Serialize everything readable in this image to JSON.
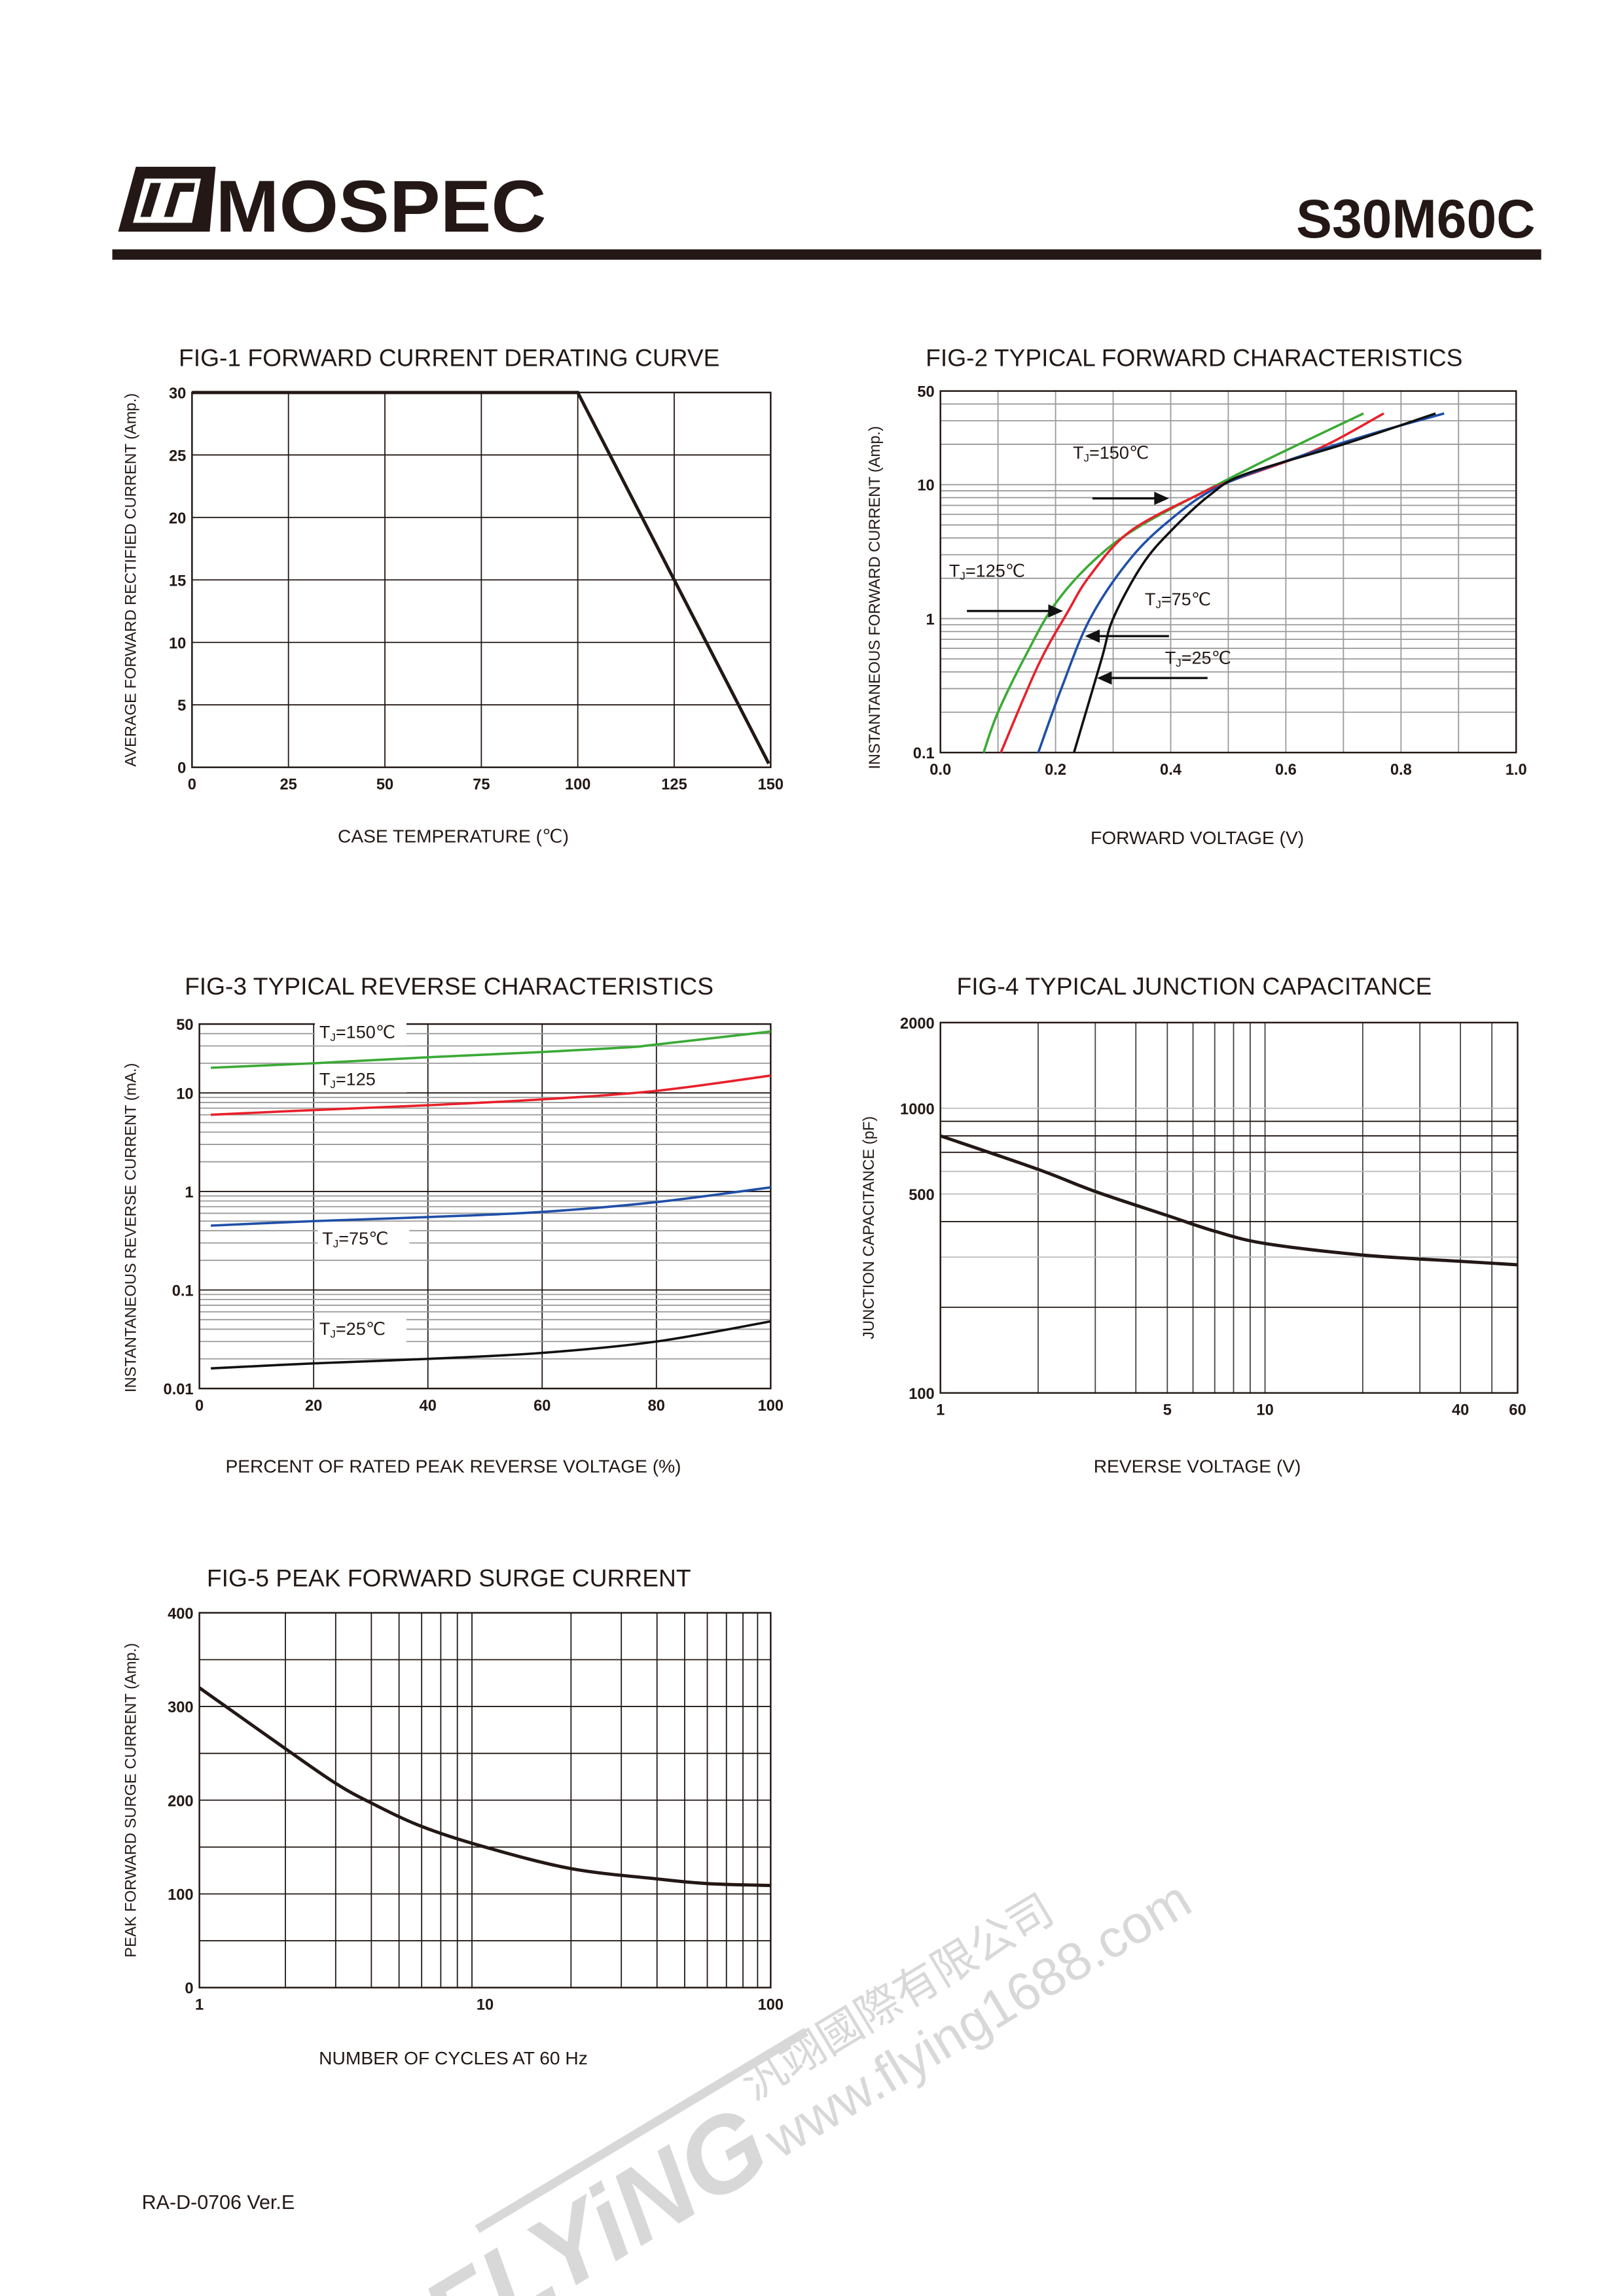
{
  "header": {
    "brand": "MOSPEC",
    "part_number": "S30M60C"
  },
  "footer": {
    "doc_code": "RA-D-0706 Ver.E"
  },
  "watermark": {
    "logo_text": "FLYiNG",
    "company_cn": "汎翊國際有限公司",
    "url": "www.flying1688.com"
  },
  "colors": {
    "ink": "#231815",
    "green": "#3aaa35",
    "red": "#e8202a",
    "blue": "#1f4fa8",
    "black": "#111111",
    "grid_gray": "#9a9a9a"
  },
  "chart_data": [
    {
      "id": "fig1",
      "type": "line",
      "title": "FIG-1 FORWARD CURRENT DERATING CURVE",
      "xlabel": "CASE TEMPERATURE (℃)",
      "ylabel": "AVERAGE FORWARD RECTIFIED CURRENT (Amp.)",
      "xscale": "linear",
      "yscale": "linear",
      "xlim": [
        0,
        150
      ],
      "ylim": [
        0,
        30
      ],
      "grid": true,
      "xticks": [
        {
          "v": 0,
          "label": "0"
        },
        {
          "v": 25,
          "label": "25"
        },
        {
          "v": 50,
          "label": "50"
        },
        {
          "v": 75,
          "label": "75"
        },
        {
          "v": 100,
          "label": "100"
        },
        {
          "v": 125,
          "label": "125"
        },
        {
          "v": 150,
          "label": "150"
        }
      ],
      "yticks": [
        {
          "v": 0,
          "label": "0"
        },
        {
          "v": 5,
          "label": "5"
        },
        {
          "v": 10,
          "label": "10"
        },
        {
          "v": 15,
          "label": "15"
        },
        {
          "v": 20,
          "label": "20"
        },
        {
          "v": 25,
          "label": "25"
        },
        {
          "v": 30,
          "label": "30"
        }
      ],
      "series": [
        {
          "name": "derating",
          "color": "#231815",
          "points": [
            [
              0,
              30
            ],
            [
              100,
              30
            ],
            [
              149.5,
              0.3
            ]
          ]
        }
      ],
      "annotations": []
    },
    {
      "id": "fig2",
      "type": "line",
      "title": "FIG-2 TYPICAL FORWARD CHARACTERISTICS",
      "xlabel": "FORWARD VOLTAGE (V)",
      "ylabel": "INSTANTANEOUS FORWARD CURRENT (Amp.)",
      "xscale": "linear",
      "yscale": "log",
      "xlim": [
        0,
        1.0
      ],
      "ylim": [
        0.1,
        50
      ],
      "grid": true,
      "xticks": [
        {
          "v": 0,
          "label": "0.0"
        },
        {
          "v": 0.2,
          "label": "0.2"
        },
        {
          "v": 0.4,
          "label": "0.4"
        },
        {
          "v": 0.6,
          "label": "0.6"
        },
        {
          "v": 0.8,
          "label": "0.8"
        },
        {
          "v": 1.0,
          "label": "1.0"
        }
      ],
      "yticks": [
        {
          "v": 0.1,
          "label": "0.1"
        },
        {
          "v": 1,
          "label": "1"
        },
        {
          "v": 10,
          "label": "10"
        },
        {
          "v": 50,
          "label": "50"
        }
      ],
      "series": [
        {
          "name": "TJ=150℃",
          "color": "#3aaa35",
          "points": [
            [
              0.075,
              0.1
            ],
            [
              0.1,
              0.2
            ],
            [
              0.15,
              0.55
            ],
            [
              0.2,
              1.3
            ],
            [
              0.27,
              2.8
            ],
            [
              0.35,
              5
            ],
            [
              0.5,
              11
            ],
            [
              0.6,
              18
            ],
            [
              0.735,
              34
            ]
          ]
        },
        {
          "name": "TJ=125℃",
          "color": "#e8202a",
          "points": [
            [
              0.105,
              0.1
            ],
            [
              0.17,
              0.45
            ],
            [
              0.22,
              1.1
            ],
            [
              0.26,
              2.1
            ],
            [
              0.33,
              4.5
            ],
            [
              0.45,
              8.5
            ],
            [
              0.5,
              10.5
            ],
            [
              0.65,
              18
            ],
            [
              0.77,
              34
            ]
          ]
        },
        {
          "name": "TJ=75℃",
          "color": "#1f4fa8",
          "points": [
            [
              0.17,
              0.1
            ],
            [
              0.21,
              0.3
            ],
            [
              0.26,
              1
            ],
            [
              0.33,
              2.8
            ],
            [
              0.4,
              5.5
            ],
            [
              0.48,
              9.5
            ],
            [
              0.6,
              15
            ],
            [
              0.75,
              24
            ],
            [
              0.875,
              34
            ]
          ]
        },
        {
          "name": "TJ=25℃",
          "color": "#111111",
          "points": [
            [
              0.232,
              0.1
            ],
            [
              0.28,
              0.5
            ],
            [
              0.3,
              1
            ],
            [
              0.35,
              2.5
            ],
            [
              0.4,
              4.5
            ],
            [
              0.47,
              8.5
            ],
            [
              0.53,
              12
            ],
            [
              0.7,
              20
            ],
            [
              0.86,
              34
            ]
          ]
        }
      ],
      "annotations": [
        {
          "prefix": "T",
          "sub": "J",
          "rest": "=150℃",
          "at": [
            0.23,
            15.6
          ],
          "arrow": [
            [
              0.264,
              7.9
            ],
            [
              0.397,
              7.9
            ]
          ]
        },
        {
          "prefix": "T",
          "sub": "J",
          "rest": "=125℃",
          "at": [
            0.015,
            2.05
          ],
          "arrow": [
            [
              0.046,
              1.14
            ],
            [
              0.213,
              1.14
            ]
          ]
        },
        {
          "prefix": "T",
          "sub": "J",
          "rest": "=75℃",
          "at": [
            0.355,
            1.26
          ],
          "arrow": [
            [
              0.397,
              0.74
            ],
            [
              0.251,
              0.74
            ]
          ]
        },
        {
          "prefix": "T",
          "sub": "J",
          "rest": "=25℃",
          "at": [
            0.39,
            0.46
          ],
          "arrow": [
            [
              0.464,
              0.36
            ],
            [
              0.272,
              0.36
            ]
          ]
        }
      ]
    },
    {
      "id": "fig3",
      "type": "line",
      "title": "FIG-3 TYPICAL REVERSE CHARACTERISTICS",
      "xlabel": "PERCENT OF RATED PEAK REVERSE VOLTAGE (%)",
      "ylabel": "INSTANTANEOUS REVERSE CURRENT (mA.)",
      "xscale": "linear",
      "yscale": "log",
      "xlim": [
        0,
        100
      ],
      "ylim": [
        0.01,
        50
      ],
      "grid": true,
      "xticks": [
        {
          "v": 0,
          "label": "0"
        },
        {
          "v": 20,
          "label": "20"
        },
        {
          "v": 40,
          "label": "40"
        },
        {
          "v": 60,
          "label": "60"
        },
        {
          "v": 80,
          "label": "80"
        },
        {
          "v": 100,
          "label": "100"
        }
      ],
      "yticks": [
        {
          "v": 0.01,
          "label": "0.01"
        },
        {
          "v": 0.1,
          "label": "0.1"
        },
        {
          "v": 1,
          "label": "1"
        },
        {
          "v": 10,
          "label": "10"
        },
        {
          "v": 50,
          "label": "50"
        }
      ],
      "series": [
        {
          "name": "TJ=150℃",
          "color": "#3aaa35",
          "points": [
            [
              2,
              18
            ],
            [
              20,
              20
            ],
            [
              40,
              23
            ],
            [
              60,
              26
            ],
            [
              75,
              29
            ],
            [
              80,
              31
            ],
            [
              100,
              42
            ]
          ]
        },
        {
          "name": "TJ=125",
          "color": "#e8202a",
          "points": [
            [
              2,
              6
            ],
            [
              20,
              6.7
            ],
            [
              40,
              7.5
            ],
            [
              60,
              8.6
            ],
            [
              80,
              10.5
            ],
            [
              100,
              15
            ]
          ]
        },
        {
          "name": "TJ=75℃",
          "color": "#1f4fa8",
          "points": [
            [
              2,
              0.45
            ],
            [
              20,
              0.5
            ],
            [
              40,
              0.55
            ],
            [
              60,
              0.62
            ],
            [
              80,
              0.78
            ],
            [
              100,
              1.1
            ]
          ]
        },
        {
          "name": "TJ=25℃",
          "color": "#111111",
          "points": [
            [
              2,
              0.016
            ],
            [
              20,
              0.018
            ],
            [
              40,
              0.02
            ],
            [
              60,
              0.023
            ],
            [
              80,
              0.03
            ],
            [
              100,
              0.048
            ]
          ]
        }
      ],
      "annotations": [
        {
          "prefix": "T",
          "sub": "J",
          "rest": "=150℃",
          "at": [
            21,
            36
          ],
          "box": true
        },
        {
          "prefix": "T",
          "sub": "J",
          "rest": "=125",
          "at": [
            21,
            12
          ],
          "box": true
        },
        {
          "prefix": "T",
          "sub": "J",
          "rest": "=75℃",
          "at": [
            21.5,
            0.29
          ],
          "box": true
        },
        {
          "prefix": "T",
          "sub": "J",
          "rest": "=25℃",
          "at": [
            21,
            0.035
          ],
          "box": true
        }
      ]
    },
    {
      "id": "fig4",
      "type": "line",
      "title": "FIG-4 TYPICAL JUNCTION CAPACITANCE",
      "xlabel": "REVERSE VOLTAGE (V)",
      "ylabel": "JUNCTION CAPACITANCE (pF)",
      "xscale": "log",
      "yscale": "log",
      "xlim": [
        1,
        60
      ],
      "ylim": [
        100,
        2000
      ],
      "grid": true,
      "xticks": [
        {
          "v": 1,
          "label": "1"
        },
        {
          "v": 5,
          "label": "5"
        },
        {
          "v": 10,
          "label": "10"
        },
        {
          "v": 40,
          "label": "40"
        },
        {
          "v": 60,
          "label": "60"
        }
      ],
      "yticks": [
        {
          "v": 100,
          "label": "100"
        },
        {
          "v": 500,
          "label": "500"
        },
        {
          "v": 1000,
          "label": "1000"
        },
        {
          "v": 2000,
          "label": "2000"
        }
      ],
      "series": [
        {
          "name": "capacitance",
          "color": "#231815",
          "points": [
            [
              1,
              800
            ],
            [
              2,
              610
            ],
            [
              3,
              510
            ],
            [
              5,
              420
            ],
            [
              7,
              370
            ],
            [
              10,
              335
            ],
            [
              20,
              305
            ],
            [
              40,
              290
            ],
            [
              60,
              282
            ]
          ]
        }
      ],
      "annotations": []
    },
    {
      "id": "fig5",
      "type": "line",
      "title": "FIG-5 PEAK FORWARD SURGE CURRENT",
      "xlabel": "NUMBER OF CYCLES AT 60 Hz",
      "ylabel": "PEAK FORWARD SURGE   CURRENT (Amp.)",
      "xscale": "log",
      "yscale": "linear",
      "xlim": [
        1,
        100
      ],
      "ylim": [
        0,
        400
      ],
      "grid": true,
      "xticks": [
        {
          "v": 1,
          "label": "1"
        },
        {
          "v": 10,
          "label": "10"
        },
        {
          "v": 100,
          "label": "100"
        }
      ],
      "yticks": [
        {
          "v": 0,
          "label": "0"
        },
        {
          "v": 100,
          "label": "100"
        },
        {
          "v": 200,
          "label": "200"
        },
        {
          "v": 300,
          "label": "300"
        },
        {
          "v": 400,
          "label": "400"
        }
      ],
      "series": [
        {
          "name": "surge",
          "color": "#231815",
          "points": [
            [
              1,
              320
            ],
            [
              2,
              255
            ],
            [
              3,
              218
            ],
            [
              4,
              197
            ],
            [
              6,
              172
            ],
            [
              10,
              150
            ],
            [
              20,
              127
            ],
            [
              40,
              116
            ],
            [
              60,
              111
            ],
            [
              100,
              109
            ]
          ]
        }
      ],
      "annotations": []
    }
  ]
}
